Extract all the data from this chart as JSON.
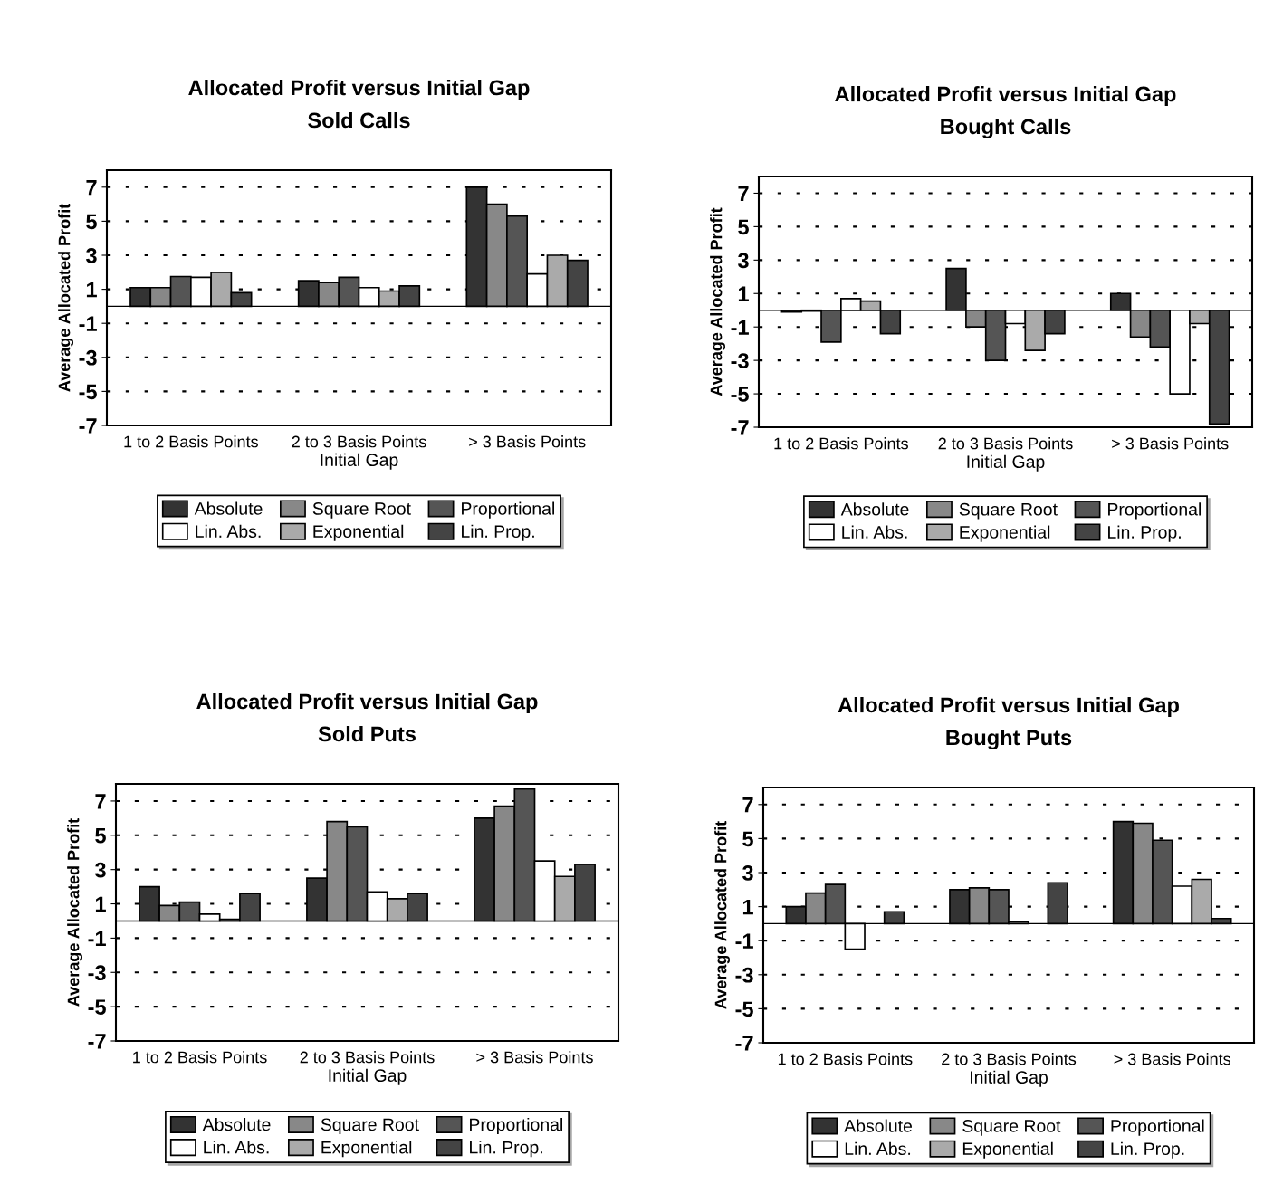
{
  "chart_data": [
    {
      "type": "bar",
      "title": "Allocated Profit versus Initial Gap",
      "subtitle": "Sold Calls",
      "xlabel": "Initial Gap",
      "ylabel": "Average Allocated Profit",
      "categories": [
        "1 to 2 Basis Points",
        "2 to 3 Basis Points",
        "> 3 Basis Points"
      ],
      "ylim": [
        -7,
        8
      ],
      "yticks": [
        -7,
        -5,
        -3,
        -1,
        1,
        3,
        5,
        7
      ],
      "grid": "y",
      "legend": "bottom",
      "series": [
        {
          "name": "Absolute",
          "color": "#333333",
          "values": [
            1.1,
            1.5,
            7.0
          ]
        },
        {
          "name": "Square Root",
          "color": "#888888",
          "values": [
            1.1,
            1.4,
            6.0
          ]
        },
        {
          "name": "Proportional",
          "color": "#555555",
          "values": [
            1.75,
            1.7,
            5.3
          ]
        },
        {
          "name": "Lin. Abs.",
          "color": "#ffffff",
          "values": [
            1.7,
            1.1,
            1.9
          ]
        },
        {
          "name": "Exponential",
          "color": "#aaaaaa",
          "values": [
            2.0,
            0.9,
            3.0
          ]
        },
        {
          "name": "Lin. Prop.",
          "color": "#444444",
          "values": [
            0.8,
            1.2,
            2.7
          ]
        }
      ]
    },
    {
      "type": "bar",
      "title": "Allocated Profit versus Initial Gap",
      "subtitle": "Bought Calls",
      "xlabel": "Initial Gap",
      "ylabel": "Average Allocated Profit",
      "categories": [
        "1 to 2 Basis Points",
        "2 to 3 Basis Points",
        "> 3 Basis Points"
      ],
      "ylim": [
        -7,
        8
      ],
      "yticks": [
        -7,
        -5,
        -3,
        -1,
        1,
        3,
        5,
        7
      ],
      "grid": "y",
      "legend": "bottom",
      "series": [
        {
          "name": "Absolute",
          "color": "#333333",
          "values": [
            -0.1,
            2.5,
            1.0
          ]
        },
        {
          "name": "Square Root",
          "color": "#888888",
          "values": [
            -0.05,
            -1.0,
            -1.6
          ]
        },
        {
          "name": "Proportional",
          "color": "#555555",
          "values": [
            -1.9,
            -3.0,
            -2.2
          ]
        },
        {
          "name": "Lin. Abs.",
          "color": "#ffffff",
          "values": [
            0.7,
            -0.8,
            -5.0
          ]
        },
        {
          "name": "Exponential",
          "color": "#aaaaaa",
          "values": [
            0.55,
            -2.4,
            -0.8
          ]
        },
        {
          "name": "Lin. Prop.",
          "color": "#444444",
          "values": [
            -1.4,
            -1.4,
            -6.8
          ]
        }
      ]
    },
    {
      "type": "bar",
      "title": "Allocated Profit versus Initial Gap",
      "subtitle": "Sold Puts",
      "xlabel": "Initial Gap",
      "ylabel": "Average Allocated Profit",
      "categories": [
        "1 to 2 Basis Points",
        "2 to 3 Basis Points",
        "> 3 Basis Points"
      ],
      "ylim": [
        -7,
        8
      ],
      "yticks": [
        -7,
        -5,
        -3,
        -1,
        1,
        3,
        5,
        7
      ],
      "grid": "y",
      "legend": "bottom",
      "series": [
        {
          "name": "Absolute",
          "color": "#333333",
          "values": [
            2.0,
            2.5,
            6.0
          ]
        },
        {
          "name": "Square Root",
          "color": "#888888",
          "values": [
            0.9,
            5.8,
            6.7
          ]
        },
        {
          "name": "Proportional",
          "color": "#555555",
          "values": [
            1.1,
            5.5,
            7.7
          ]
        },
        {
          "name": "Lin. Abs.",
          "color": "#ffffff",
          "values": [
            0.4,
            1.7,
            3.5
          ]
        },
        {
          "name": "Exponential",
          "color": "#aaaaaa",
          "values": [
            0.1,
            1.3,
            2.6
          ]
        },
        {
          "name": "Lin. Prop.",
          "color": "#444444",
          "values": [
            1.6,
            1.6,
            3.3
          ]
        }
      ]
    },
    {
      "type": "bar",
      "title": "Allocated Profit versus Initial Gap",
      "subtitle": "Bought Puts",
      "xlabel": "Initial Gap",
      "ylabel": "Average Allocated Profit",
      "categories": [
        "1 to 2 Basis Points",
        "2 to 3 Basis Points",
        "> 3 Basis Points"
      ],
      "ylim": [
        -7,
        8
      ],
      "yticks": [
        -7,
        -5,
        -3,
        -1,
        1,
        3,
        5,
        7
      ],
      "grid": "y",
      "legend": "bottom",
      "series": [
        {
          "name": "Absolute",
          "color": "#333333",
          "values": [
            1.0,
            2.0,
            6.0
          ]
        },
        {
          "name": "Square Root",
          "color": "#888888",
          "values": [
            1.8,
            2.1,
            5.9
          ]
        },
        {
          "name": "Proportional",
          "color": "#555555",
          "values": [
            2.3,
            2.0,
            4.9
          ]
        },
        {
          "name": "Lin. Abs.",
          "color": "#ffffff",
          "values": [
            -1.5,
            0.1,
            2.2
          ]
        },
        {
          "name": "Exponential",
          "color": "#aaaaaa",
          "values": [
            null,
            null,
            2.6
          ]
        },
        {
          "name": "Lin. Prop.",
          "color": "#444444",
          "values": [
            0.7,
            2.4,
            0.3
          ]
        }
      ]
    }
  ]
}
